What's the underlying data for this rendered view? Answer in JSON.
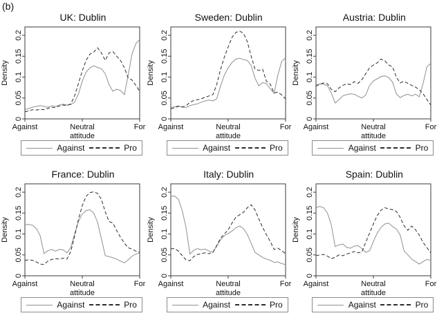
{
  "figure_label": "(b)",
  "chart_data": {
    "type": "line",
    "ylabel": "Density",
    "xlabel": "attitude",
    "x_tick_labels": [
      "Against",
      "Neutral",
      "For"
    ],
    "x_tick_positions": [
      0,
      0.5,
      1
    ],
    "y_tick_labels": [
      "0",
      "0.05",
      "0.1",
      "0.15",
      "0.2"
    ],
    "y_tick_values": [
      0,
      0.05,
      0.1,
      0.15,
      0.2
    ],
    "ylim": [
      0,
      0.22
    ],
    "grid": false,
    "legend": [
      "Against",
      "Pro"
    ],
    "legend_position": "below-each-panel",
    "colors": {
      "against": "#8f8f8f",
      "pro": "#2b2b2b"
    },
    "x_note": "series values evenly spaced from Against (0) to For (1)",
    "panels": [
      {
        "title": "UK: Dublin",
        "series": [
          {
            "name": "Against",
            "line": "solid",
            "values": [
              0.022,
              0.025,
              0.028,
              0.03,
              0.032,
              0.03,
              0.028,
              0.031,
              0.03,
              0.033,
              0.035,
              0.033,
              0.034,
              0.04,
              0.06,
              0.09,
              0.112,
              0.122,
              0.127,
              0.123,
              0.12,
              0.108,
              0.082,
              0.066,
              0.071,
              0.068,
              0.058,
              0.105,
              0.155,
              0.18,
              0.19
            ]
          },
          {
            "name": "Pro",
            "line": "dashed",
            "values": [
              0.017,
              0.019,
              0.022,
              0.021,
              0.023,
              0.022,
              0.025,
              0.028,
              0.027,
              0.031,
              0.033,
              0.032,
              0.036,
              0.055,
              0.085,
              0.115,
              0.14,
              0.155,
              0.16,
              0.17,
              0.158,
              0.14,
              0.158,
              0.161,
              0.15,
              0.14,
              0.122,
              0.098,
              0.093,
              0.08,
              0.066
            ]
          }
        ]
      },
      {
        "title": "Sweden: Dublin",
        "series": [
          {
            "name": "Against",
            "line": "solid",
            "values": [
              0.027,
              0.029,
              0.031,
              0.028,
              0.027,
              0.032,
              0.034,
              0.036,
              0.04,
              0.043,
              0.045,
              0.043,
              0.048,
              0.078,
              0.105,
              0.122,
              0.135,
              0.143,
              0.145,
              0.142,
              0.14,
              0.128,
              0.098,
              0.079,
              0.087,
              0.084,
              0.072,
              0.061,
              0.105,
              0.138,
              0.146
            ]
          },
          {
            "name": "Pro",
            "line": "dashed",
            "values": [
              0.024,
              0.027,
              0.03,
              0.029,
              0.031,
              0.04,
              0.044,
              0.046,
              0.048,
              0.052,
              0.055,
              0.058,
              0.082,
              0.118,
              0.148,
              0.172,
              0.195,
              0.207,
              0.21,
              0.205,
              0.185,
              0.15,
              0.12,
              0.116,
              0.119,
              0.09,
              0.083,
              0.062,
              0.064,
              0.057,
              0.048
            ]
          }
        ]
      },
      {
        "title": "Austria: Dublin",
        "series": [
          {
            "name": "Against",
            "line": "solid",
            "values": [
              0.081,
              0.084,
              0.083,
              0.079,
              0.062,
              0.038,
              0.046,
              0.055,
              0.058,
              0.06,
              0.059,
              0.054,
              0.05,
              0.057,
              0.08,
              0.091,
              0.096,
              0.101,
              0.103,
              0.099,
              0.088,
              0.06,
              0.051,
              0.056,
              0.059,
              0.055,
              0.059,
              0.053,
              0.085,
              0.125,
              0.133
            ]
          },
          {
            "name": "Pro",
            "line": "dashed",
            "values": [
              0.078,
              0.083,
              0.086,
              0.084,
              0.071,
              0.065,
              0.074,
              0.08,
              0.084,
              0.082,
              0.089,
              0.085,
              0.094,
              0.108,
              0.122,
              0.129,
              0.134,
              0.143,
              0.139,
              0.129,
              0.124,
              0.1,
              0.086,
              0.09,
              0.085,
              0.08,
              0.076,
              0.07,
              0.06,
              0.046,
              0.033
            ]
          }
        ]
      },
      {
        "title": "France: Dublin",
        "series": [
          {
            "name": "Against",
            "line": "solid",
            "values": [
              0.122,
              0.123,
              0.121,
              0.113,
              0.096,
              0.053,
              0.06,
              0.063,
              0.059,
              0.063,
              0.062,
              0.055,
              0.068,
              0.1,
              0.13,
              0.148,
              0.156,
              0.158,
              0.15,
              0.128,
              0.088,
              0.048,
              0.046,
              0.043,
              0.04,
              0.035,
              0.031,
              0.038,
              0.047,
              0.052,
              0.055
            ]
          },
          {
            "name": "Pro",
            "line": "dashed",
            "values": [
              0.037,
              0.038,
              0.037,
              0.033,
              0.028,
              0.027,
              0.035,
              0.039,
              0.041,
              0.04,
              0.042,
              0.04,
              0.058,
              0.095,
              0.135,
              0.168,
              0.19,
              0.199,
              0.201,
              0.197,
              0.183,
              0.153,
              0.13,
              0.126,
              0.108,
              0.092,
              0.078,
              0.067,
              0.064,
              0.059,
              0.056
            ]
          }
        ]
      },
      {
        "title": "Italy: Dublin",
        "series": [
          {
            "name": "Against",
            "line": "solid",
            "values": [
              0.19,
              0.191,
              0.183,
              0.156,
              0.115,
              0.052,
              0.061,
              0.065,
              0.062,
              0.064,
              0.059,
              0.056,
              0.071,
              0.086,
              0.096,
              0.101,
              0.107,
              0.115,
              0.119,
              0.113,
              0.099,
              0.078,
              0.056,
              0.05,
              0.044,
              0.04,
              0.037,
              0.032,
              0.033,
              0.029,
              0.027
            ]
          },
          {
            "name": "Pro",
            "line": "dashed",
            "values": [
              0.065,
              0.065,
              0.059,
              0.048,
              0.038,
              0.036,
              0.046,
              0.051,
              0.053,
              0.055,
              0.053,
              0.056,
              0.072,
              0.09,
              0.1,
              0.11,
              0.126,
              0.14,
              0.146,
              0.152,
              0.163,
              0.17,
              0.158,
              0.136,
              0.116,
              0.098,
              0.082,
              0.063,
              0.066,
              0.06,
              0.053
            ]
          }
        ]
      },
      {
        "title": "Spain: Dublin",
        "series": [
          {
            "name": "Against",
            "line": "solid",
            "values": [
              0.163,
              0.166,
              0.163,
              0.15,
              0.122,
              0.07,
              0.074,
              0.076,
              0.068,
              0.066,
              0.071,
              0.072,
              0.065,
              0.056,
              0.06,
              0.082,
              0.102,
              0.116,
              0.124,
              0.126,
              0.118,
              0.112,
              0.098,
              0.06,
              0.05,
              0.04,
              0.034,
              0.028,
              0.034,
              0.039,
              0.037
            ]
          },
          {
            "name": "Pro",
            "line": "dashed",
            "values": [
              0.048,
              0.05,
              0.051,
              0.047,
              0.041,
              0.044,
              0.05,
              0.048,
              0.052,
              0.055,
              0.058,
              0.055,
              0.057,
              0.08,
              0.102,
              0.124,
              0.144,
              0.157,
              0.163,
              0.16,
              0.158,
              0.154,
              0.14,
              0.12,
              0.109,
              0.119,
              0.11,
              0.097,
              0.08,
              0.067,
              0.055
            ]
          }
        ]
      }
    ]
  }
}
